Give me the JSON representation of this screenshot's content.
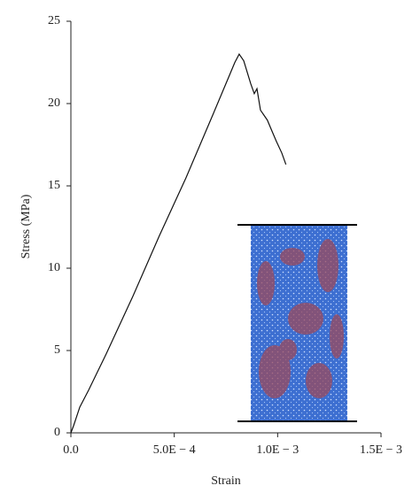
{
  "chart_data": {
    "type": "line",
    "x_label": "Strain",
    "y_label": "Stress (MPa)",
    "x": [
      0,
      1.3e-05,
      4.3e-05,
      8.6e-05,
      0.000171,
      0.0003,
      0.000429,
      0.000557,
      0.000686,
      0.000763,
      0.000793,
      0.000814,
      0.000836,
      0.00087,
      0.000887,
      0.0009,
      0.000917,
      0.00095,
      0.000977,
      0.000994,
      0.00102,
      0.00104
    ],
    "values": [
      0,
      0.43,
      1.56,
      2.6,
      4.8,
      8.3,
      12.0,
      15.5,
      19.3,
      21.6,
      22.5,
      23.0,
      22.6,
      21.2,
      20.6,
      20.9,
      19.6,
      19.0,
      18.2,
      17.7,
      17.0,
      16.3
    ],
    "color": "#111111",
    "xlim": [
      0,
      0.0015
    ],
    "xticks": [
      {
        "value": 0,
        "label": "0.0"
      },
      {
        "value": 0.0005,
        "label": "5.0E − 4"
      },
      {
        "value": 0.001,
        "label": "1.0E − 3"
      },
      {
        "value": 0.0015,
        "label": "1.5E − 3"
      }
    ],
    "ylim": [
      0,
      25
    ],
    "yticks": [
      0,
      5,
      10,
      15,
      20,
      25
    ],
    "grid": false
  }
}
